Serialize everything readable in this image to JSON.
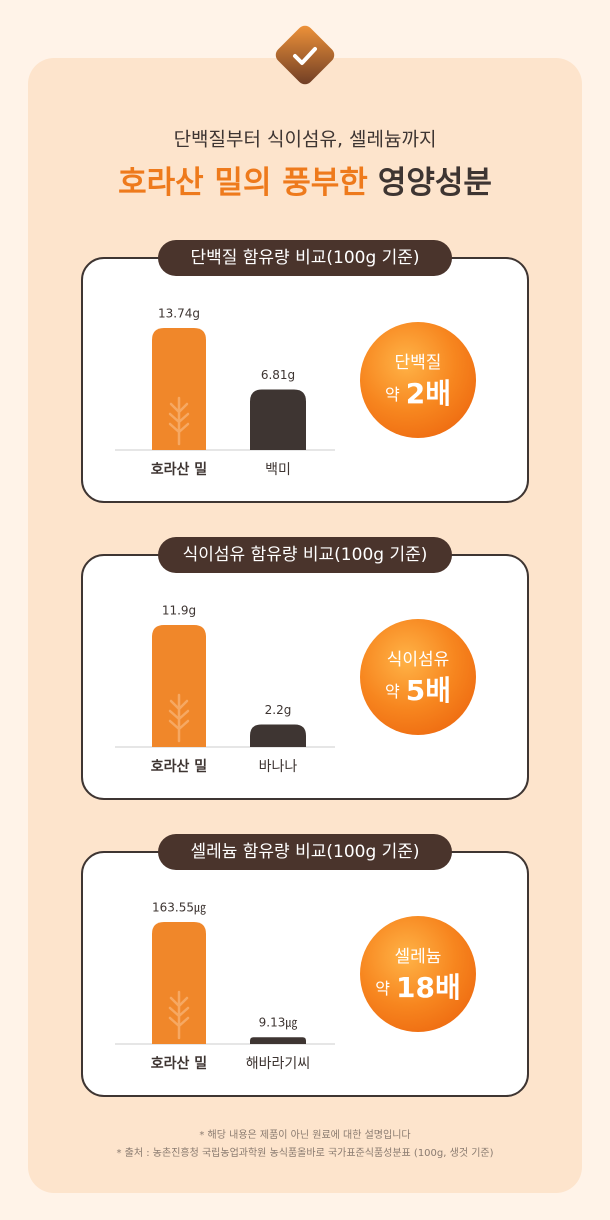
{
  "header": {
    "subtitle": "단백질부터 식이섬유, 셀레늄까지",
    "title_highlight": "호라산 밀의 풍부한",
    "title_rest": "영양성분"
  },
  "chart_data": [
    {
      "type": "bar",
      "title": "단백질 함유량 비교(100g 기준)",
      "categories": [
        "호라산 밀",
        "백미"
      ],
      "values": [
        13.74,
        6.81
      ],
      "value_labels": [
        "13.74g",
        "6.81g"
      ],
      "colors": [
        "#f0872a",
        "#3e3532"
      ],
      "badge": {
        "label": "단백질",
        "prefix": "약",
        "multiple": "2배"
      }
    },
    {
      "type": "bar",
      "title": "식이섬유 함유량 비교(100g 기준)",
      "categories": [
        "호라산 밀",
        "바나나"
      ],
      "values": [
        11.9,
        2.2
      ],
      "value_labels": [
        "11.9g",
        "2.2g"
      ],
      "colors": [
        "#f0872a",
        "#3e3532"
      ],
      "badge": {
        "label": "식이섬유",
        "prefix": "약",
        "multiple": "5배"
      }
    },
    {
      "type": "bar",
      "title": "셀레늄 함유량 비교(100g 기준)",
      "categories": [
        "호라산 밀",
        "해바라기씨"
      ],
      "values": [
        163.55,
        9.13
      ],
      "value_labels": [
        "163.55㎍",
        "9.13㎍"
      ],
      "colors": [
        "#f0872a",
        "#3e3532"
      ],
      "badge": {
        "label": "셀레늄",
        "prefix": "약",
        "multiple": "18배"
      }
    }
  ],
  "footnotes": [
    "* 해당 내용은 제품이 아닌 원료에 대한 설명입니다",
    "* 출처 : 농촌진흥청 국립농업과학원 농식품올바로 국가표준식품성분표 (100g, 생것 기준)"
  ]
}
